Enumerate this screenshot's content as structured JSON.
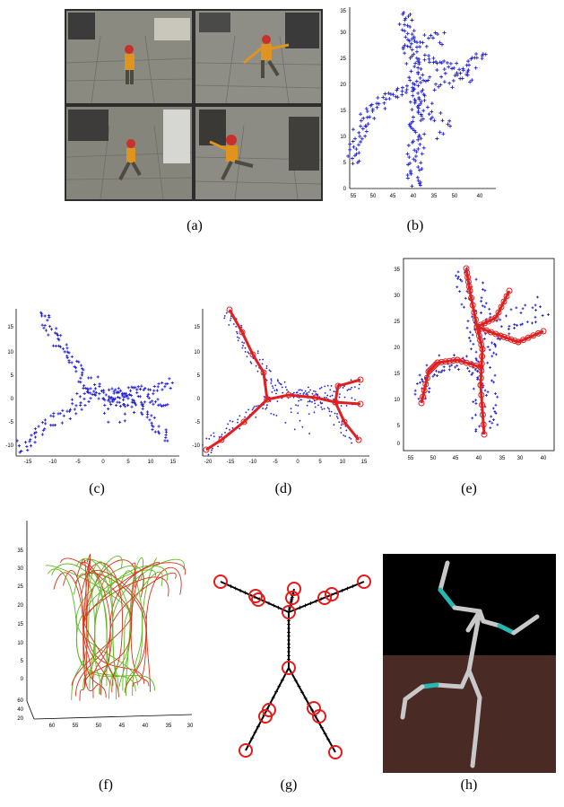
{
  "captions": [
    "(a)",
    "(b)",
    "(c)",
    "(d)",
    "(e)",
    "(f)",
    "(g)",
    "(h)"
  ],
  "panel_b": {
    "yticks": [
      "0",
      "5",
      "10",
      "15",
      "20",
      "25",
      "30",
      "35"
    ],
    "xticks": [
      "55",
      "50",
      "45",
      "40",
      "35",
      "50",
      "40"
    ]
  },
  "panel_c": {
    "yticks": [
      "15",
      "10",
      "5",
      "0",
      "-5",
      "-10"
    ],
    "xticks": [
      "-15",
      "-10",
      "-5",
      "0",
      "5",
      "10",
      "15"
    ]
  },
  "panel_d": {
    "yticks": [
      "15",
      "10",
      "5",
      "0",
      "-5",
      "-10"
    ],
    "xticks": [
      "-20",
      "-15",
      "-10",
      "-5",
      "0",
      "5",
      "10",
      "15"
    ]
  },
  "panel_e": {
    "yticks": [
      "35",
      "30",
      "25",
      "20",
      "15",
      "10",
      "5",
      "0"
    ],
    "xticks": [
      "55",
      "50",
      "45",
      "40",
      "35",
      "30",
      "40"
    ]
  },
  "panel_f": {
    "yticks": [
      "35",
      "30",
      "25",
      "20",
      "15",
      "10",
      "5",
      "0"
    ],
    "xticks": [
      "60",
      "55",
      "50",
      "45",
      "40",
      "35",
      "30"
    ],
    "zticks": [
      "60",
      "40",
      "20"
    ]
  },
  "colors": {
    "points": "#1f1fd6",
    "skeleton": "#e02020",
    "curve_green": "#5fb81f",
    "curve_red": "#d8321a",
    "bg_black": "#000000",
    "bg_brown": "#4a2a25",
    "bone": "#c8c8c8",
    "joint": "#27b8b0"
  }
}
